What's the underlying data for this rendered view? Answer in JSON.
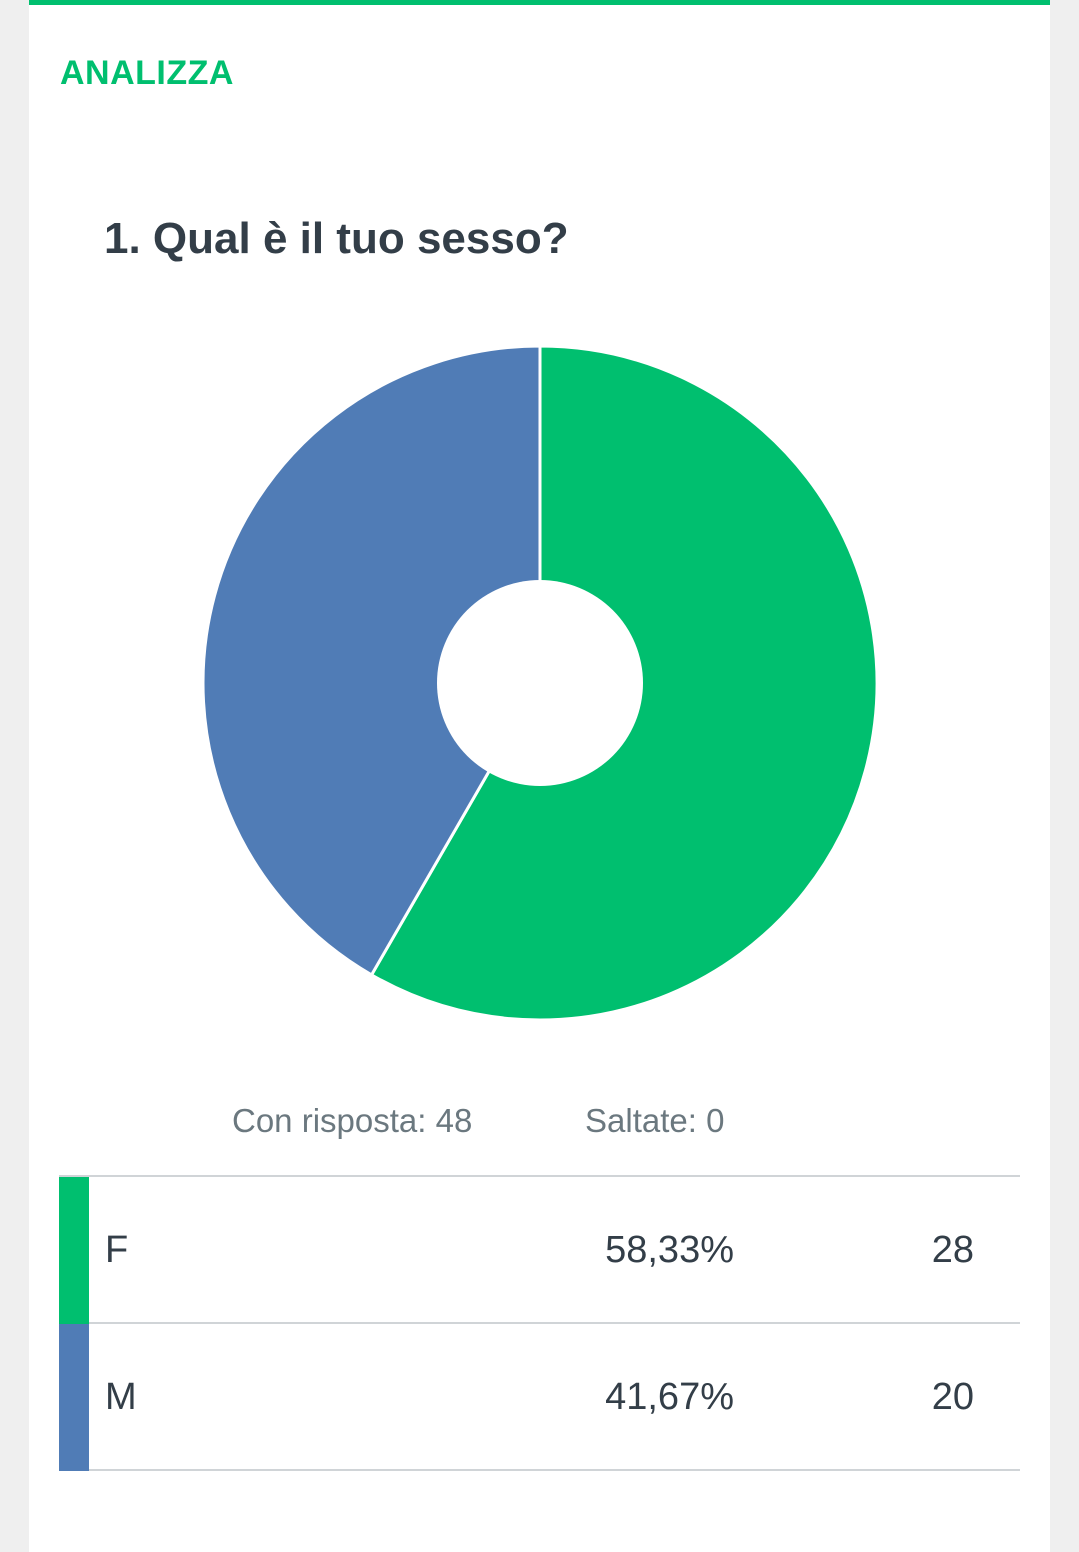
{
  "header": {
    "tab_label": "ANALIZZA",
    "accent_color": "#00bf6f"
  },
  "question": {
    "title": "1. Qual è il tuo sesso?"
  },
  "chart_data": {
    "type": "pie",
    "donut": true,
    "title": "",
    "categories": [
      "F",
      "M"
    ],
    "values": [
      58.33,
      41.67
    ],
    "counts": [
      28,
      20
    ],
    "colors": [
      "#00bf6f",
      "#507cb6"
    ],
    "legend": "none"
  },
  "stats": {
    "answered": "Con risposta: 48",
    "skipped": "Saltate: 0"
  },
  "table": {
    "rows": [
      {
        "label": "F",
        "percent": "58,33%",
        "count": "28",
        "color": "#00bf6f"
      },
      {
        "label": "M",
        "percent": "41,67%",
        "count": "20",
        "color": "#507cb6"
      }
    ]
  }
}
